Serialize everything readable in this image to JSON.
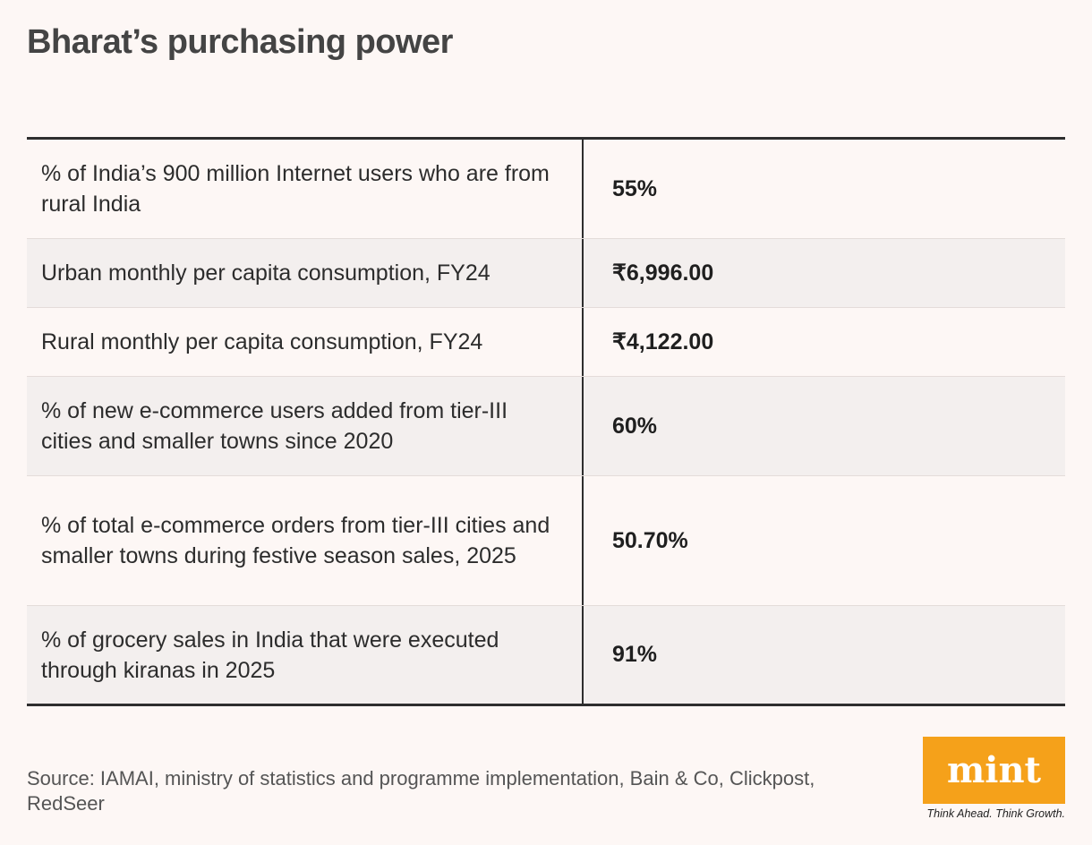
{
  "title": "Bharat’s purchasing power",
  "rows": [
    {
      "label": "% of India’s 900 million Internet users who are from rural India",
      "value": "55%"
    },
    {
      "label": "Urban monthly per capita consumption, FY24",
      "value": "₹6,996.00"
    },
    {
      "label": "Rural monthly per capita consumption, FY24",
      "value": "₹4,122.00"
    },
    {
      "label": "% of new e-commerce users added from tier-III cities and smaller towns since 2020",
      "value": "60%"
    },
    {
      "label": "% of total e-commerce orders from tier-III cities and smaller towns during festive season sales, 2025",
      "value": "50.70%"
    },
    {
      "label": "% of grocery sales in India that were executed through kiranas in 2025",
      "value": "91%"
    }
  ],
  "source": "Source: IAMAI, ministry of statistics and programme implementation, Bain & Co, Clickpost, RedSeer",
  "logo": {
    "text": "mint",
    "tagline": "Think Ahead. Think Growth.",
    "color": "#f5a11a"
  },
  "chart_data": {
    "type": "table",
    "title": "Bharat’s purchasing power",
    "columns": [],
    "rows": [
      [
        "% of India’s 900 million Internet users who are from rural India",
        "55%"
      ],
      [
        "Urban monthly per capita consumption, FY24",
        "₹6,996.00"
      ],
      [
        "Rural monthly per capita consumption, FY24",
        "₹4,122.00"
      ],
      [
        "% of new e-commerce users added from tier-III cities and smaller towns since 2020",
        "60%"
      ],
      [
        "% of total e-commerce orders from tier-III cities and smaller towns during festive season sales, 2025",
        "50.70%"
      ],
      [
        "% of grocery sales in India that were executed through kiranas in 2025",
        "91%"
      ]
    ]
  }
}
